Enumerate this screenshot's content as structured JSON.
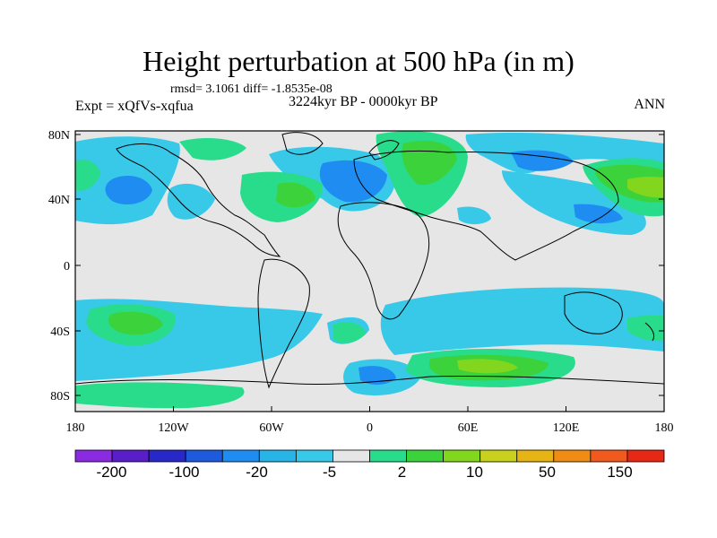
{
  "title": "Height perturbation at 500 hPa (in m)",
  "stats": "rmsd= 3.1061 diff= -1.8535e-08",
  "experiment": "Expt = xQfVs-xqfua",
  "period": "3224kyr BP - 0000kyr BP",
  "season": "ANN",
  "lat_ticks": [
    "80N",
    "40N",
    "0",
    "40S",
    "80S"
  ],
  "lon_ticks": [
    "180",
    "120W",
    "60W",
    "0",
    "60E",
    "120E",
    "180"
  ],
  "colorbar": {
    "labels": [
      "-200",
      "-100",
      "-20",
      "-5",
      "2",
      "10",
      "50",
      "150"
    ],
    "colors": [
      "#8a2be2",
      "#5a1ec8",
      "#2828c8",
      "#1e5adc",
      "#1e8cf0",
      "#28b4e6",
      "#38c8e8",
      "#e6e6e6",
      "#28dc8c",
      "#3cd23c",
      "#82d71e",
      "#c8d21e",
      "#e6b414",
      "#f08c14",
      "#f05a1e",
      "#e62814"
    ]
  },
  "colors": {
    "background_field": "#e6e6e6",
    "negative_light": "#38c8e8",
    "negative_mid": "#1e8cf0",
    "positive_light": "#28dc8c",
    "positive_mid": "#3cd23c",
    "positive_strong": "#82d71e"
  }
}
